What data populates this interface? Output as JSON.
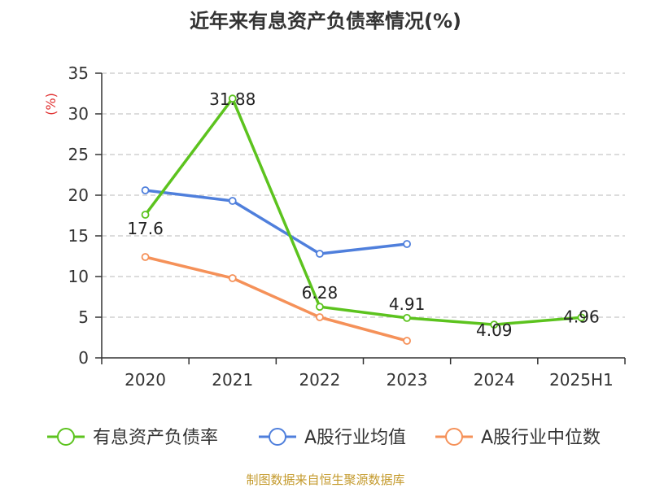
{
  "chart_data": {
    "type": "line",
    "title": "近年来有息资产负债率情况(%)",
    "ylabel": "(%)",
    "xlabel": "",
    "categories": [
      "2020",
      "2021",
      "2022",
      "2023",
      "2024",
      "2025H1"
    ],
    "ylim": [
      0,
      35
    ],
    "yticks": [
      0,
      5,
      10,
      15,
      20,
      25,
      30,
      35
    ],
    "grid": true,
    "legend_position": "bottom",
    "series": [
      {
        "name": "有息资产负债率",
        "color": "#5cc31e",
        "values": [
          17.6,
          31.88,
          6.28,
          4.91,
          4.09,
          4.96
        ],
        "labels": [
          "17.6",
          "31.88",
          "6.28",
          "4.91",
          "4.09",
          "4.96"
        ]
      },
      {
        "name": "A股行业均值",
        "color": "#4f7fdc",
        "values": [
          20.6,
          19.3,
          12.8,
          14.0,
          null,
          null
        ]
      },
      {
        "name": "A股行业中位数",
        "color": "#f59159",
        "values": [
          12.4,
          9.8,
          5.0,
          2.1,
          null,
          null
        ]
      }
    ],
    "source": "制图数据来自恒生聚源数据库"
  }
}
